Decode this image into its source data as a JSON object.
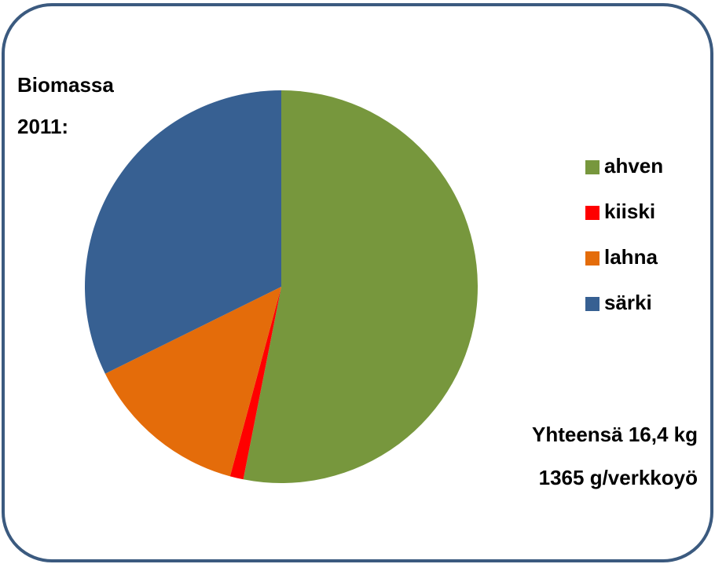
{
  "chart_data": {
    "type": "pie",
    "title_lines": [
      "Biomassa",
      "2011:"
    ],
    "categories": [
      "ahven",
      "kiiski",
      "lahna",
      "särki"
    ],
    "values": [
      53.1,
      1.1,
      13.5,
      32.3
    ],
    "colors": [
      "#77973d",
      "#ff0000",
      "#e46c0a",
      "#376092"
    ],
    "start_angle": 0,
    "direction": "clockwise",
    "legend": "right",
    "annotations": [
      "Yhteensä 16,4 kg",
      "1365 g/verkkoyö"
    ]
  }
}
